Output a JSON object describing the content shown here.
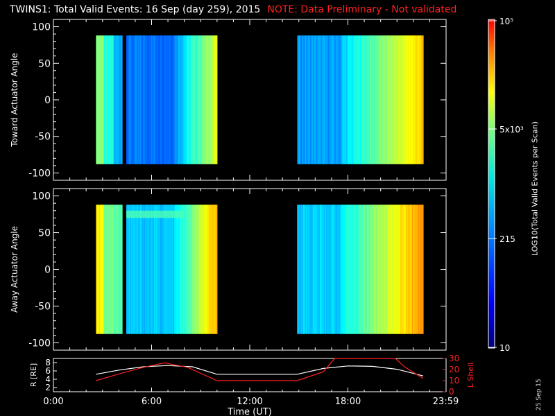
{
  "header": {
    "title": "TWINS1: Total Valid Events: 16 Sep (day 259), 2015",
    "note": "NOTE: Data Preliminary - Not validated"
  },
  "stamp": "25 Sep 15",
  "colorbar": {
    "label": "LOG10(Total Valid Events per Scan)",
    "ticks": [
      "10",
      "215",
      "5x10^3",
      "10^5"
    ]
  },
  "chart_data": [
    {
      "type": "heatmap",
      "name": "toward",
      "ylabel": "Toward Actuator Angle",
      "ylim": [
        -110,
        110
      ],
      "yticks": [
        100,
        50,
        0,
        -50,
        -100
      ],
      "xlim": [
        0,
        24
      ],
      "data_hours": [
        [
          2.6,
          4.2
        ],
        [
          4.45,
          10.0
        ],
        [
          14.9,
          22.6
        ]
      ],
      "angle_range": [
        -88,
        88
      ]
    },
    {
      "type": "heatmap",
      "name": "away",
      "ylabel": "Away Actuator Angle",
      "ylim": [
        -110,
        110
      ],
      "yticks": [
        100,
        50,
        0,
        -50,
        -100
      ],
      "xlim": [
        0,
        24
      ],
      "data_hours": [
        [
          2.6,
          4.2
        ],
        [
          4.45,
          10.0
        ],
        [
          14.9,
          22.6
        ]
      ],
      "angle_range": [
        -88,
        88
      ]
    },
    {
      "type": "line",
      "name": "orbit",
      "xlabel": "Time (UT)",
      "xticks": [
        "0:00",
        "6:00",
        "12:00",
        "18:00",
        "23:59"
      ],
      "x_hours": [
        0,
        6,
        12,
        18,
        23.98
      ],
      "left_ylabel": "R [RE]",
      "left_ylim": [
        1,
        9
      ],
      "left_yticks": [
        2,
        4,
        6,
        8
      ],
      "right_ylabel": "L Shell",
      "right_ylim": [
        0,
        30
      ],
      "right_yticks": [
        0,
        10,
        20,
        30
      ],
      "series": [
        {
          "name": "R",
          "color": "#ffffff",
          "x": [
            2.6,
            4,
            5.5,
            7,
            8.5,
            10,
            14.9,
            16.5,
            18,
            19.5,
            21,
            22.6
          ],
          "y": [
            5.2,
            6.2,
            7.0,
            7.3,
            7.0,
            5.2,
            5.2,
            6.6,
            7.2,
            7.1,
            6.4,
            4.8
          ]
        },
        {
          "name": "L Shell",
          "color": "#ff2020",
          "x": [
            2.6,
            4,
            5.5,
            6.8,
            8.2,
            10,
            14.9,
            16.5,
            17.2,
            20.9,
            21.5,
            22.6
          ],
          "y": [
            10,
            16,
            22,
            26,
            22,
            10,
            10,
            18,
            30,
            30,
            22,
            12
          ]
        }
      ]
    }
  ]
}
